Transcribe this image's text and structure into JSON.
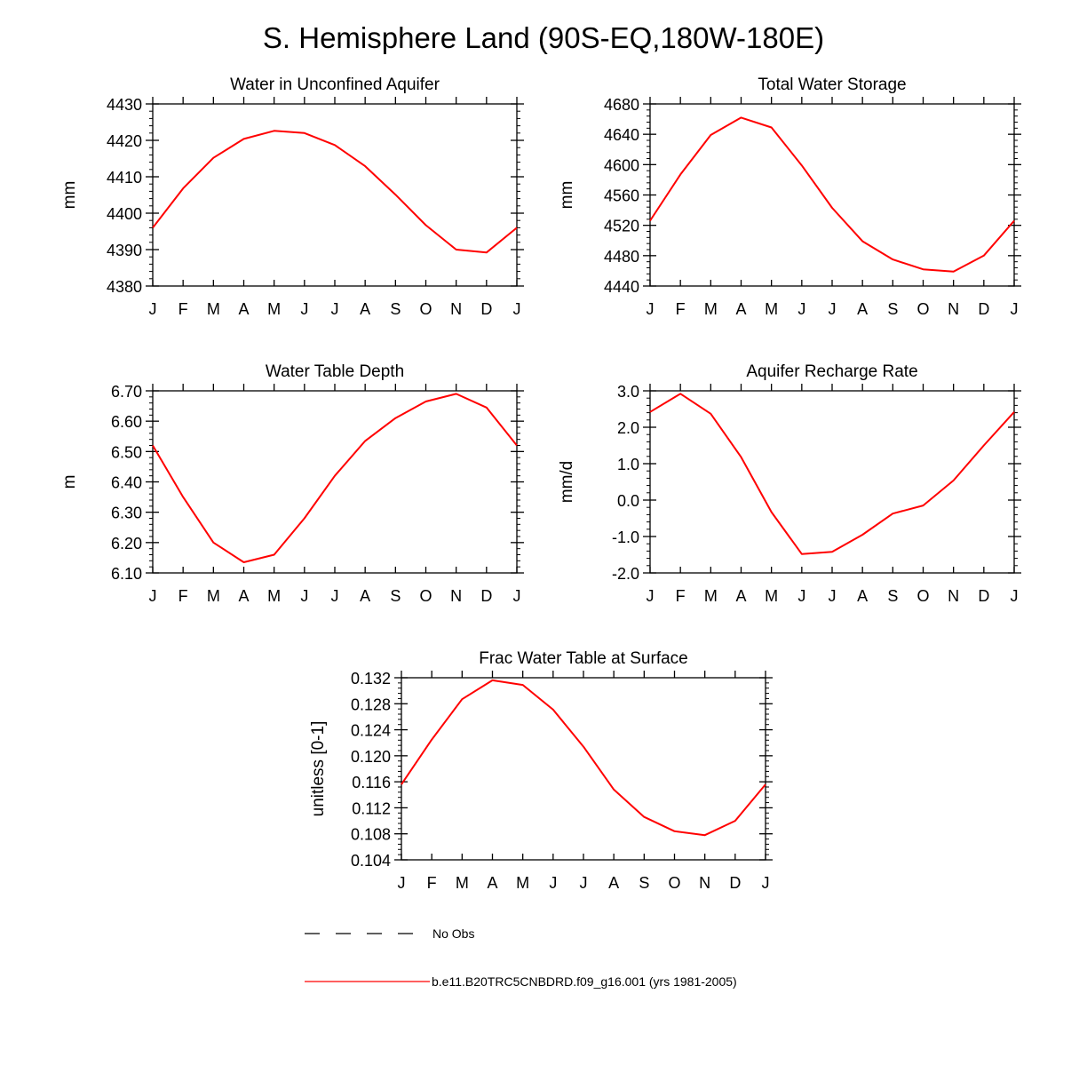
{
  "page_title": "S. Hemisphere Land (90S-EQ,180W-180E)",
  "colors": {
    "model": "#ff0000",
    "obs": "#000000",
    "axis": "#000000"
  },
  "legend": {
    "obs_label": "No Obs",
    "model_label": "b.e11.B20TRC5CNBDRD.f09_g16.001 (yrs 1981-2005)"
  },
  "chart_data": [
    {
      "type": "line",
      "title": "Water in Unconfined Aquifer",
      "ylabel": "mm",
      "xlabel": "",
      "categories": [
        "J",
        "F",
        "M",
        "A",
        "M",
        "J",
        "J",
        "A",
        "S",
        "O",
        "N",
        "D",
        "J"
      ],
      "ylim": [
        4380,
        4430
      ],
      "yticks": [
        4380,
        4390,
        4400,
        4410,
        4420,
        4430
      ],
      "ytick_labels": [
        "4380",
        "4390",
        "4400",
        "4410",
        "4420",
        "4430"
      ],
      "series": [
        {
          "name": "b.e11.B20TRC5CNBDRD.f09_g16.001 (yrs 1981-2005)",
          "values": [
            4396.0,
            4406.8,
            4415.2,
            4420.4,
            4422.6,
            4422.0,
            4418.7,
            4412.9,
            4405.1,
            4396.7,
            4390.0,
            4389.2,
            4396.0
          ]
        }
      ]
    },
    {
      "type": "line",
      "title": "Total Water Storage",
      "ylabel": "mm",
      "xlabel": "",
      "categories": [
        "J",
        "F",
        "M",
        "A",
        "M",
        "J",
        "J",
        "A",
        "S",
        "O",
        "N",
        "D",
        "J"
      ],
      "ylim": [
        4440,
        4680
      ],
      "yticks": [
        4440,
        4480,
        4520,
        4560,
        4600,
        4640,
        4680
      ],
      "ytick_labels": [
        "4440",
        "4480",
        "4520",
        "4560",
        "4600",
        "4640",
        "4680"
      ],
      "series": [
        {
          "name": "b.e11.B20TRC5CNBDRD.f09_g16.001 (yrs 1981-2005)",
          "values": [
            4526,
            4587,
            4639,
            4662,
            4649,
            4599,
            4543,
            4499,
            4475,
            4462,
            4459,
            4480,
            4526
          ]
        }
      ]
    },
    {
      "type": "line",
      "title": "Water Table Depth",
      "ylabel": "m",
      "xlabel": "",
      "categories": [
        "J",
        "F",
        "M",
        "A",
        "M",
        "J",
        "J",
        "A",
        "S",
        "O",
        "N",
        "D",
        "J"
      ],
      "ylim": [
        6.1,
        6.7
      ],
      "yticks": [
        6.1,
        6.2,
        6.3,
        6.4,
        6.5,
        6.6,
        6.7
      ],
      "ytick_labels": [
        "6.10",
        "6.20",
        "6.30",
        "6.40",
        "6.50",
        "6.60",
        "6.70"
      ],
      "series": [
        {
          "name": "b.e11.B20TRC5CNBDRD.f09_g16.001 (yrs 1981-2005)",
          "values": [
            6.52,
            6.35,
            6.2,
            6.135,
            6.16,
            6.28,
            6.42,
            6.535,
            6.61,
            6.665,
            6.69,
            6.645,
            6.52
          ]
        }
      ]
    },
    {
      "type": "line",
      "title": "Aquifer Recharge Rate",
      "ylabel": "mm/d",
      "xlabel": "",
      "categories": [
        "J",
        "F",
        "M",
        "A",
        "M",
        "J",
        "J",
        "A",
        "S",
        "O",
        "N",
        "D",
        "J"
      ],
      "ylim": [
        -2.0,
        3.0
      ],
      "yticks": [
        -2.0,
        -1.0,
        0.0,
        1.0,
        2.0,
        3.0
      ],
      "ytick_labels": [
        "-2.0",
        "-1.0",
        "0.0",
        "1.0",
        "2.0",
        "3.0"
      ],
      "series": [
        {
          "name": "b.e11.B20TRC5CNBDRD.f09_g16.001 (yrs 1981-2005)",
          "values": [
            2.42,
            2.92,
            2.37,
            1.18,
            -0.33,
            -1.48,
            -1.42,
            -0.95,
            -0.37,
            -0.15,
            0.54,
            1.5,
            2.42
          ]
        }
      ]
    },
    {
      "type": "line",
      "title": "Frac Water Table at Surface",
      "ylabel": "unitless [0-1]",
      "xlabel": "",
      "categories": [
        "J",
        "F",
        "M",
        "A",
        "M",
        "J",
        "J",
        "A",
        "S",
        "O",
        "N",
        "D",
        "J"
      ],
      "ylim": [
        0.104,
        0.132
      ],
      "yticks": [
        0.104,
        0.108,
        0.112,
        0.116,
        0.12,
        0.124,
        0.128,
        0.132
      ],
      "ytick_labels": [
        "0.104",
        "0.108",
        "0.112",
        "0.116",
        "0.120",
        "0.124",
        "0.128",
        "0.132"
      ],
      "series": [
        {
          "name": "b.e11.B20TRC5CNBDRD.f09_g16.001 (yrs 1981-2005)",
          "values": [
            0.1156,
            0.1225,
            0.1287,
            0.1316,
            0.1309,
            0.1271,
            0.1214,
            0.1148,
            0.1106,
            0.1084,
            0.1078,
            0.11,
            0.1156
          ]
        }
      ]
    }
  ]
}
